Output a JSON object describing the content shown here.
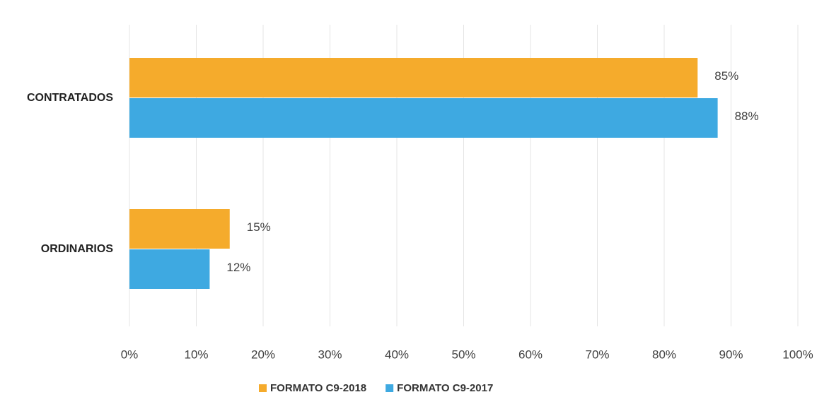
{
  "chart_data": {
    "type": "hbar",
    "categories": [
      "CONTRATADOS",
      "ORDINARIOS"
    ],
    "series": [
      {
        "name": "FORMATO C9-2018",
        "color": "#f5ab2c",
        "values": [
          85,
          15
        ],
        "value_labels": [
          "85%",
          "15%"
        ]
      },
      {
        "name": "FORMATO C9-2017",
        "color": "#3ea9e1",
        "values": [
          88,
          12
        ],
        "value_labels": [
          "88%",
          "12%"
        ]
      }
    ],
    "xlim": [
      0,
      100
    ],
    "xticks": [
      {
        "value": 0,
        "label": "0%"
      },
      {
        "value": 10,
        "label": "10%"
      },
      {
        "value": 20,
        "label": "20%"
      },
      {
        "value": 30,
        "label": "30%"
      },
      {
        "value": 40,
        "label": "40%"
      },
      {
        "value": 50,
        "label": "50%"
      },
      {
        "value": 60,
        "label": "60%"
      },
      {
        "value": 70,
        "label": "70%"
      },
      {
        "value": 80,
        "label": "80%"
      },
      {
        "value": 90,
        "label": "90%"
      },
      {
        "value": 100,
        "label": "100%"
      }
    ],
    "grid": true,
    "legend": "bottom"
  }
}
